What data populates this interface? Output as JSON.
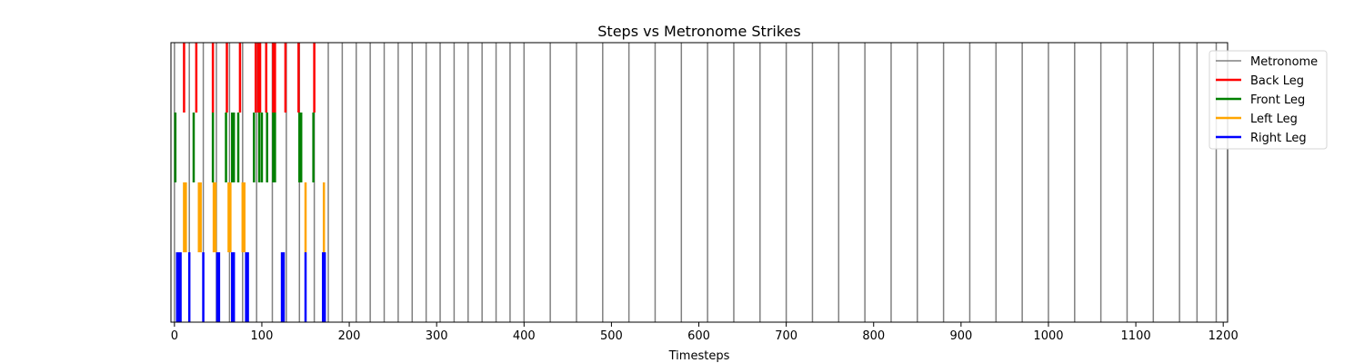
{
  "chart_data": {
    "type": "event-raster",
    "title": "Steps vs Metronome Strikes",
    "xlabel": "Timesteps",
    "ylabel": "",
    "xlim": [
      -4,
      1205
    ],
    "xticks": [
      0,
      100,
      200,
      300,
      400,
      500,
      600,
      700,
      800,
      900,
      1000,
      1100,
      1200
    ],
    "grid": false,
    "legend_position": "top-right-outside",
    "series": [
      {
        "name": "Metronome",
        "color": "#808080",
        "lane": [
          0,
          1
        ],
        "x": [
          0,
          17,
          33,
          48,
          63,
          78,
          94,
          112,
          128,
          143,
          160,
          176,
          192,
          208,
          224,
          240,
          256,
          272,
          288,
          304,
          320,
          336,
          352,
          368,
          384,
          400,
          430,
          460,
          490,
          520,
          550,
          580,
          610,
          640,
          670,
          700,
          730,
          760,
          790,
          820,
          850,
          880,
          910,
          940,
          970,
          1000,
          1030,
          1060,
          1090,
          1120,
          1150,
          1170,
          1192
        ]
      },
      {
        "name": "Back Leg",
        "color": "#ff0000",
        "lane": [
          0.75,
          1
        ],
        "x": [
          11,
          25,
          44,
          60,
          75,
          93,
          96,
          98,
          105,
          113,
          115,
          127,
          142,
          160
        ]
      },
      {
        "name": "Front Leg",
        "color": "#008000",
        "lane": [
          0.5,
          0.75
        ],
        "x": [
          1,
          22,
          44,
          59,
          66,
          68,
          73,
          91,
          97,
          100,
          106,
          113,
          115,
          143,
          145,
          159
        ]
      },
      {
        "name": "Left Leg",
        "color": "#ffa500",
        "lane": [
          0.25,
          0.5
        ],
        "x": [
          11,
          13,
          28,
          30,
          45,
          47,
          62,
          64,
          78,
          80,
          150,
          171
        ]
      },
      {
        "name": "Right Leg",
        "color": "#0000ff",
        "lane": [
          0,
          0.25
        ],
        "x": [
          3,
          5,
          7,
          17,
          33,
          49,
          51,
          66,
          68,
          82,
          84,
          123,
          125,
          150,
          170,
          172
        ]
      }
    ]
  }
}
